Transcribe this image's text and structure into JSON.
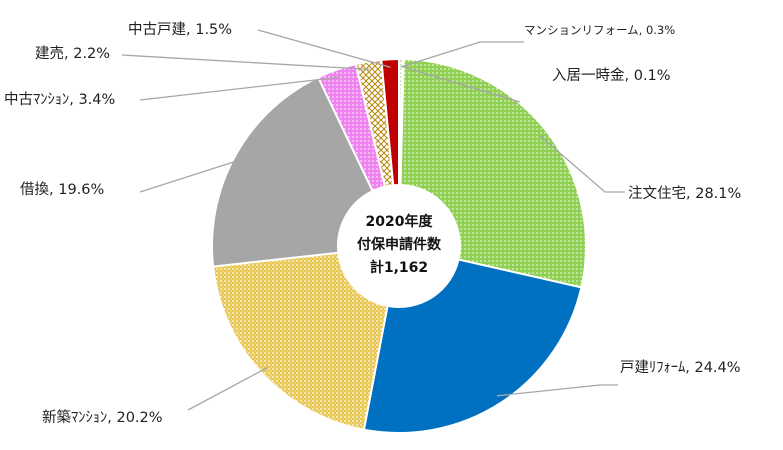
{
  "chart_data": {
    "type": "pie",
    "donut": true,
    "center_text": [
      "2020年度",
      "付保申請件数",
      "計1,162"
    ],
    "unit": "%",
    "slices": [
      {
        "label": "マンションリフォーム",
        "value": 0.3,
        "display": "マンションリフォーム, 0.3%",
        "color": "#ffffff",
        "pattern": "dots-light"
      },
      {
        "label": "入居一時金",
        "value": 0.1,
        "display": "入居一時金, 0.1%",
        "color": "#ffffff",
        "pattern": "none"
      },
      {
        "label": "注文住宅",
        "value": 28.1,
        "display": "注文住宅, 28.1%",
        "color": "#8fcf52",
        "pattern": "dots-green"
      },
      {
        "label": "戸建リフォーム",
        "value": 24.4,
        "display": "戸建ﾘﾌｫｰﾑ, 24.4%",
        "color": "#0070c0",
        "pattern": "solid"
      },
      {
        "label": "新築マンション",
        "value": 20.2,
        "display": "新築ﾏﾝｼｮﾝ, 20.2%",
        "color": "#e5c34a",
        "pattern": "dots-yellow"
      },
      {
        "label": "借換",
        "value": 19.6,
        "display": "借換, 19.6%",
        "color": "#a6a6a6",
        "pattern": "solid"
      },
      {
        "label": "中古マンション",
        "value": 3.4,
        "display": "中古ﾏﾝｼｮﾝ, 3.4%",
        "color": "#ee82ee",
        "pattern": "dots-pink"
      },
      {
        "label": "建売",
        "value": 2.2,
        "display": "建売, 2.2%",
        "color": "#c9a227",
        "pattern": "diamond"
      },
      {
        "label": "中古戸建",
        "value": 1.5,
        "display": "中古戸建, 1.5%",
        "color": "#c00000",
        "pattern": "solid"
      }
    ]
  }
}
